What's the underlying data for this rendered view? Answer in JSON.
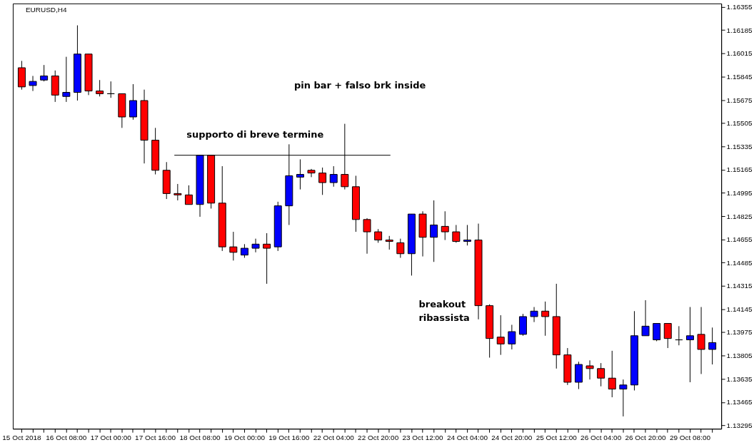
{
  "chart_data": {
    "type": "candlestick",
    "title": "EURUSD,H4",
    "categories": [
      "15 Oct 2018",
      null,
      null,
      null,
      "16 Oct 08:00",
      null,
      null,
      null,
      "17 Oct 00:00",
      null,
      null,
      null,
      "17 Oct 16:00",
      null,
      null,
      null,
      "18 Oct 08:00",
      null,
      null,
      null,
      "19 Oct 00:00",
      null,
      null,
      null,
      "19 Oct 16:00",
      null,
      null,
      null,
      "22 Oct 04:00",
      null,
      null,
      null,
      "22 Oct 20:00",
      null,
      null,
      null,
      "23 Oct 12:00",
      null,
      null,
      null,
      "24 Oct 04:00",
      null,
      null,
      null,
      "24 Oct 20:00",
      null,
      null,
      null,
      "25 Oct 12:00",
      null,
      null,
      null,
      "26 Oct 04:00",
      null,
      null,
      null,
      "26 Oct 20:00",
      null,
      null,
      null,
      "29 Oct 08:00",
      null,
      null
    ],
    "ohlc": [
      [
        1.1591,
        1.1596,
        1.1575,
        1.1577
      ],
      [
        1.1578,
        1.1585,
        1.1574,
        1.1581
      ],
      [
        1.1582,
        1.1593,
        1.1581,
        1.1585
      ],
      [
        1.1585,
        1.1589,
        1.1566,
        1.1571
      ],
      [
        1.157,
        1.1599,
        1.1566,
        1.1573
      ],
      [
        1.1573,
        1.1622,
        1.1567,
        1.1601
      ],
      [
        1.1601,
        1.1601,
        1.1571,
        1.1574
      ],
      [
        1.1574,
        1.1582,
        1.157,
        1.1572
      ],
      [
        1.1572,
        1.1581,
        1.1569,
        1.1572
      ],
      [
        1.1572,
        1.1572,
        1.1547,
        1.1555
      ],
      [
        1.1555,
        1.1579,
        1.1553,
        1.1567
      ],
      [
        1.1567,
        1.1575,
        1.1521,
        1.1538
      ],
      [
        1.1538,
        1.1547,
        1.1513,
        1.1516
      ],
      [
        1.1516,
        1.1522,
        1.1495,
        1.1499
      ],
      [
        1.1499,
        1.1506,
        1.1494,
        1.1498
      ],
      [
        1.1498,
        1.1505,
        1.1491,
        1.1491
      ],
      [
        1.1491,
        1.1527,
        1.1482,
        1.1527
      ],
      [
        1.1527,
        1.1527,
        1.1488,
        1.1492
      ],
      [
        1.1492,
        1.1519,
        1.1457,
        1.146
      ],
      [
        1.146,
        1.1471,
        1.145,
        1.1456
      ],
      [
        1.1454,
        1.1462,
        1.1452,
        1.1459
      ],
      [
        1.1459,
        1.1466,
        1.1456,
        1.1462
      ],
      [
        1.1462,
        1.147,
        1.1433,
        1.1459
      ],
      [
        1.146,
        1.1493,
        1.1457,
        1.149
      ],
      [
        1.149,
        1.1535,
        1.1476,
        1.1512
      ],
      [
        1.1511,
        1.1524,
        1.1502,
        1.1513
      ],
      [
        1.1516,
        1.1517,
        1.1511,
        1.1514
      ],
      [
        1.1514,
        1.1518,
        1.1498,
        1.1507
      ],
      [
        1.1507,
        1.1519,
        1.1504,
        1.1513
      ],
      [
        1.1513,
        1.155,
        1.1502,
        1.1504
      ],
      [
        1.1504,
        1.1512,
        1.1471,
        1.148
      ],
      [
        1.148,
        1.1481,
        1.1455,
        1.1471
      ],
      [
        1.1471,
        1.1473,
        1.1463,
        1.1465
      ],
      [
        1.1465,
        1.1468,
        1.1458,
        1.1464
      ],
      [
        1.1463,
        1.1466,
        1.1452,
        1.1455
      ],
      [
        1.1455,
        1.1484,
        1.1439,
        1.1484
      ],
      [
        1.1484,
        1.1486,
        1.1453,
        1.1467
      ],
      [
        1.1467,
        1.1494,
        1.1449,
        1.1476
      ],
      [
        1.1475,
        1.1486,
        1.1465,
        1.1471
      ],
      [
        1.1471,
        1.1476,
        1.1463,
        1.1464
      ],
      [
        1.1464,
        1.1476,
        1.1461,
        1.1465
      ],
      [
        1.1465,
        1.1477,
        1.1407,
        1.1417
      ],
      [
        1.1417,
        1.1418,
        1.1379,
        1.1393
      ],
      [
        1.1394,
        1.141,
        1.1381,
        1.1389
      ],
      [
        1.1389,
        1.1403,
        1.1385,
        1.1398
      ],
      [
        1.1396,
        1.1411,
        1.1395,
        1.1409
      ],
      [
        1.1409,
        1.1416,
        1.1405,
        1.1413
      ],
      [
        1.1413,
        1.142,
        1.1395,
        1.1409
      ],
      [
        1.1409,
        1.1433,
        1.1371,
        1.1381
      ],
      [
        1.1381,
        1.1386,
        1.1359,
        1.1361
      ],
      [
        1.1361,
        1.1376,
        1.1356,
        1.1374
      ],
      [
        1.1373,
        1.1377,
        1.1363,
        1.1371
      ],
      [
        1.1371,
        1.1375,
        1.1358,
        1.1364
      ],
      [
        1.1364,
        1.1384,
        1.135,
        1.1356
      ],
      [
        1.1356,
        1.1363,
        1.1336,
        1.1359
      ],
      [
        1.1359,
        1.1413,
        1.1355,
        1.1395
      ],
      [
        1.1395,
        1.1421,
        1.1395,
        1.1402
      ],
      [
        1.1392,
        1.1404,
        1.1391,
        1.1404
      ],
      [
        1.1404,
        1.1404,
        1.1386,
        1.1393
      ],
      [
        1.1392,
        1.1402,
        1.1388,
        1.1392
      ],
      [
        1.1392,
        1.1416,
        1.1361,
        1.1395
      ],
      [
        1.1396,
        1.1416,
        1.1367,
        1.1385
      ],
      [
        1.1385,
        1.1401,
        1.1374,
        1.139
      ]
    ],
    "colors": [
      "#ff0000",
      "#0000ff",
      "#0000ff",
      "#ff0000",
      "#0000ff",
      "#0000ff",
      "#ff0000",
      "#ff0000",
      "#000000",
      "#ff0000",
      "#0000ff",
      "#ff0000",
      "#ff0000",
      "#ff0000",
      "#ff0000",
      "#ff0000",
      "#0000ff",
      "#ff0000",
      "#ff0000",
      "#ff0000",
      "#0000ff",
      "#0000ff",
      "#ff0000",
      "#0000ff",
      "#0000ff",
      "#0000ff",
      "#ff0000",
      "#ff0000",
      "#0000ff",
      "#ff0000",
      "#ff0000",
      "#ff0000",
      "#ff0000",
      "#ff0000",
      "#ff0000",
      "#0000ff",
      "#ff0000",
      "#0000ff",
      "#ff0000",
      "#ff0000",
      "#0000ff",
      "#ff0000",
      "#ff0000",
      "#ff0000",
      "#0000ff",
      "#0000ff",
      "#0000ff",
      "#ff0000",
      "#ff0000",
      "#ff0000",
      "#0000ff",
      "#ff0000",
      "#ff0000",
      "#ff0000",
      "#0000ff",
      "#0000ff",
      "#0000ff",
      "#0000ff",
      "#ff0000",
      "#000000",
      "#0000ff",
      "#ff0000",
      "#0000ff"
    ],
    "ylim": [
      1.1327,
      1.1638
    ],
    "yticks": [
      1.13295,
      1.13465,
      1.13635,
      1.13805,
      1.13975,
      1.14145,
      1.14315,
      1.14485,
      1.14655,
      1.14825,
      1.14995,
      1.15165,
      1.15335,
      1.15505,
      1.15675,
      1.15845,
      1.16015,
      1.16185,
      1.16355
    ],
    "ref_lines": [
      {
        "axis": "y",
        "value": 1.1527,
        "label": "supporto di breve termine",
        "color": "#000000"
      }
    ],
    "annotations": [
      "pin bar + falso brk inside",
      "breakout\nribassista"
    ],
    "grid": false
  }
}
